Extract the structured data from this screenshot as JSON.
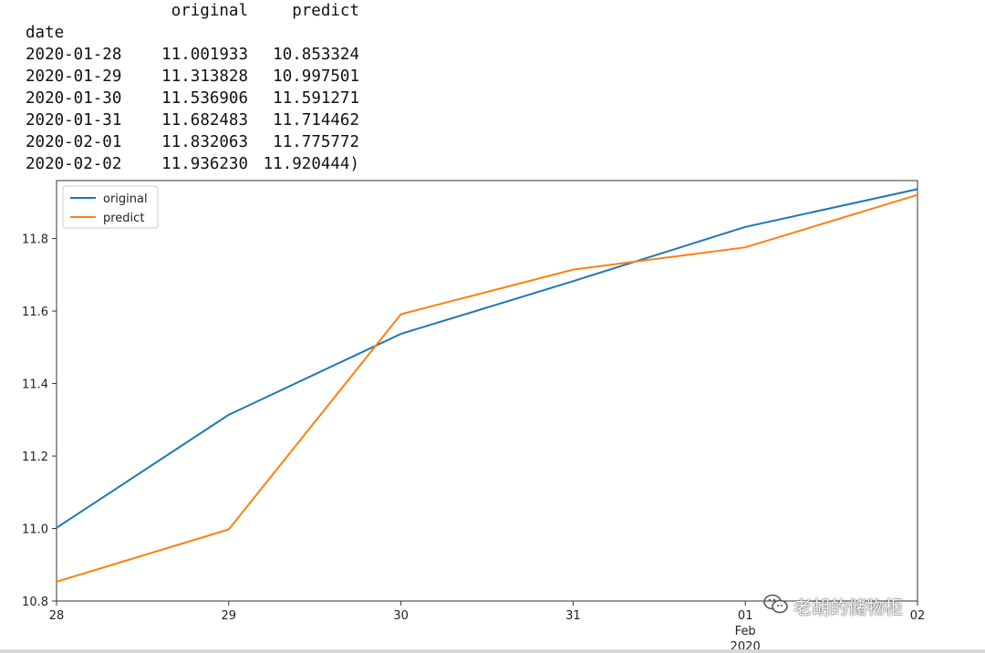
{
  "table": {
    "header_cols": [
      "original",
      "predict"
    ],
    "index_name": "date",
    "rows": [
      {
        "date": "2020-01-28",
        "original": "11.001933",
        "predict": "10.853324"
      },
      {
        "date": "2020-01-29",
        "original": "11.313828",
        "predict": "10.997501"
      },
      {
        "date": "2020-01-30",
        "original": "11.536906",
        "predict": "11.591271"
      },
      {
        "date": "2020-01-31",
        "original": "11.682483",
        "predict": "11.714462"
      },
      {
        "date": "2020-02-01",
        "original": "11.832063",
        "predict": "11.775772"
      },
      {
        "date": "2020-02-02",
        "original": "11.936230",
        "predict": "11.920444)"
      }
    ]
  },
  "chart_data": {
    "type": "line",
    "x": [
      "2020-01-28",
      "2020-01-29",
      "2020-01-30",
      "2020-01-31",
      "2020-02-01",
      "2020-02-02"
    ],
    "x_tick_labels": [
      "28",
      "29",
      "30",
      "31",
      "01",
      "02"
    ],
    "x_secondary_labels": {
      "month": "Feb",
      "year": "2020"
    },
    "series": [
      {
        "name": "original",
        "color": "#1f77b4",
        "values": [
          11.001933,
          11.313828,
          11.536906,
          11.682483,
          11.832063,
          11.93623
        ]
      },
      {
        "name": "predict",
        "color": "#ff7f0e",
        "values": [
          10.853324,
          10.997501,
          11.591271,
          11.714462,
          11.775772,
          11.920444
        ]
      }
    ],
    "ylim": [
      10.8,
      11.96
    ],
    "y_ticks": [
      10.8,
      11.0,
      11.2,
      11.4,
      11.6,
      11.8
    ],
    "y_tick_labels": [
      "10.8",
      "11.0",
      "11.2",
      "11.4",
      "11.6",
      "11.8"
    ],
    "legend": "top-left",
    "grid": false,
    "title": "",
    "xlabel": "",
    "ylabel": ""
  },
  "watermark": {
    "text": "老胡的储物柜",
    "icon": "wechat-icon"
  }
}
